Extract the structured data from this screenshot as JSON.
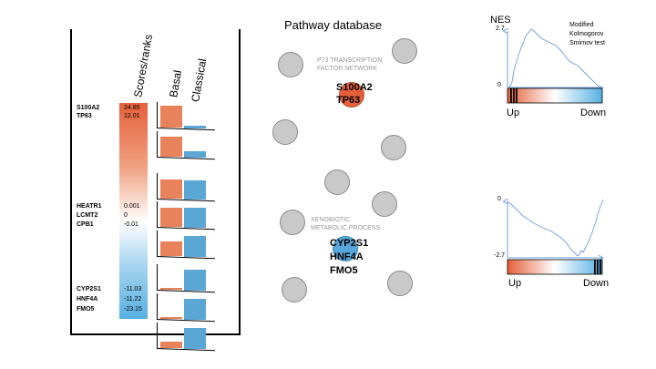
{
  "left_panel": {
    "header_scores": "Scores/ranks",
    "header_basal": "Basal",
    "header_classical": "Classical",
    "genes": [
      {
        "name": "S100A2",
        "score": "24.85",
        "basal": 0.92,
        "classical": 0.12
      },
      {
        "name": "TP63",
        "score": "12.01",
        "basal": 0.85,
        "classical": 0.25
      },
      {
        "name": "HEATR1",
        "score": "0.001",
        "basal": 0.8,
        "classical": 0.82
      },
      {
        "name": "LCMT2",
        "score": "0",
        "basal": 0.82,
        "classical": 0.84
      },
      {
        "name": "CPB1",
        "score": "-0.01",
        "basal": 0.6,
        "classical": 0.88
      },
      {
        "name": "CYP2S1",
        "score": "-11.03",
        "basal": 0.08,
        "classical": 0.88
      },
      {
        "name": "HNF4A",
        "score": "-11.22",
        "basal": 0.08,
        "classical": 0.88
      },
      {
        "name": "FMO5",
        "score": "-23.15",
        "basal": 0.25,
        "classical": 0.88
      }
    ]
  },
  "pathway": {
    "title": "Pathway database",
    "p73_label_line1": "P73 TRANSCRIPTION",
    "p73_label_line2": "FACTOR NETWORK",
    "p73_genes": [
      "S100A2",
      "TP63"
    ],
    "xeno_label_line1": "XENOBIOTIC",
    "xeno_label_line2": "METABOLIC PROCESS",
    "xeno_genes": [
      "CYP2S1",
      "HNF4A",
      "FMO5"
    ]
  },
  "enrichment_top": {
    "axis_label": "NES",
    "y_max": "2.7",
    "y_zero": "0",
    "annotation_line1": "Modified",
    "annotation_line2": "Kolmogorov",
    "annotation_line3": "Smirnov test",
    "left_label": "Up",
    "right_label": "Down"
  },
  "enrichment_bottom": {
    "y_zero": "0",
    "y_min": "-2.7",
    "left_label": "Up",
    "right_label": "Down"
  },
  "colors": {
    "basal": "#e8825a",
    "classical": "#5aa7d6",
    "gradient_top": "#e5603a",
    "gradient_bottom": "#56b0e2",
    "node": "#c9c9c9",
    "curve": "#6f9fd8"
  }
}
